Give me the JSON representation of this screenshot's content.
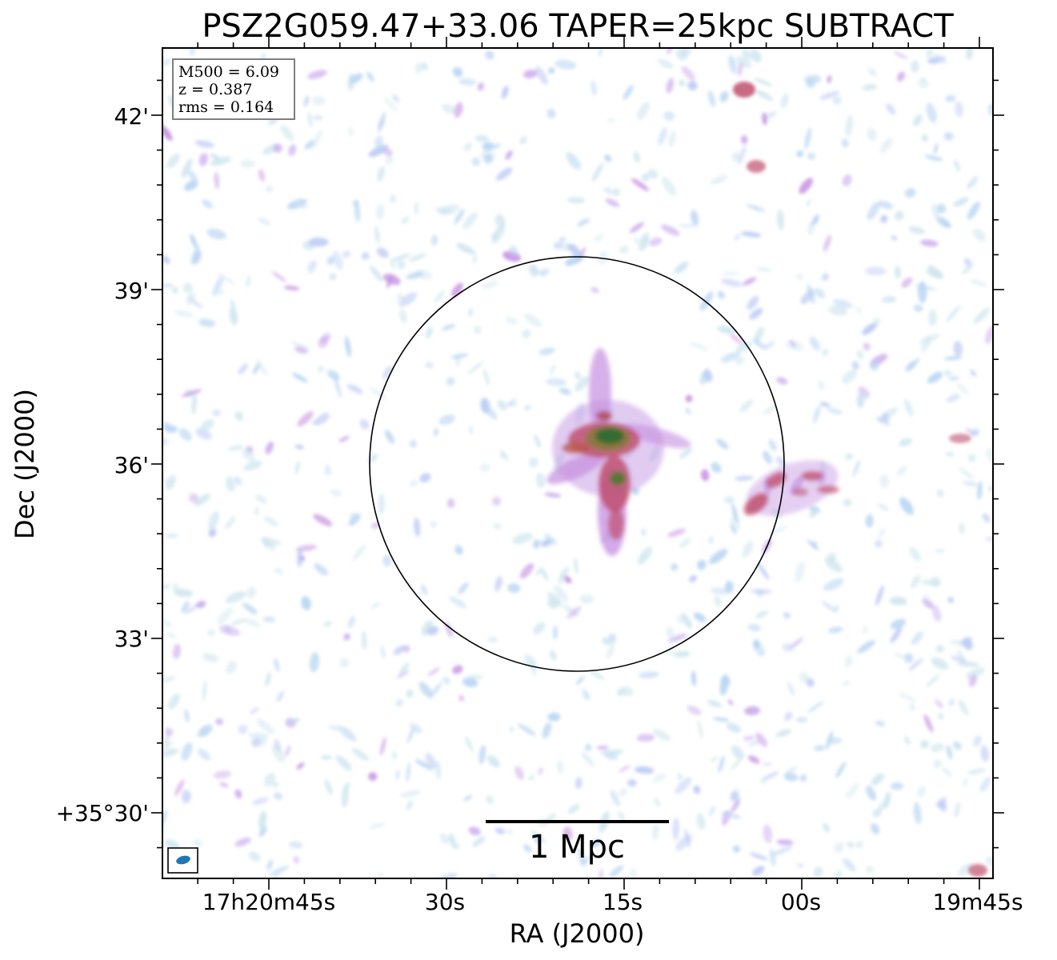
{
  "title": "PSZ2G059.47+33.06 TAPER=25kpc SUBTRACT",
  "axes": {
    "xlabel": "RA (J2000)",
    "ylabel": "Dec (J2000)",
    "x_ticks": [
      "17h20m45s",
      "30s",
      "15s",
      "00s",
      "19m45s"
    ],
    "y_ticks": [
      "+35°30'",
      "33'",
      "36'",
      "39'",
      "42'"
    ]
  },
  "info_box": {
    "line1": "M500 = 6.09",
    "line2": "z = 0.387",
    "line3": "rms = 0.164"
  },
  "scale_bar": {
    "label": "1 Mpc"
  },
  "colors": {
    "low": "#b6d4f2",
    "mid": "#c58ee0",
    "high": "#c0506e",
    "peak": "#2f6b2f",
    "beam": "#1f77b4"
  }
}
